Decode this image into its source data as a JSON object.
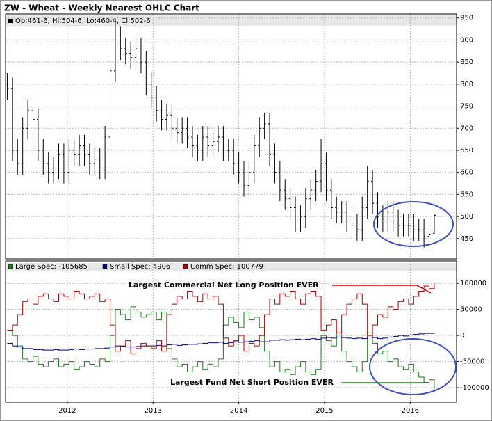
{
  "chart_data": [
    {
      "type": "ohlc",
      "title": "ZW - Wheat - Weekly Nearest OHLC Chart",
      "legend": "Op:461-6, Hi:504-6, Lo:460-4, Cl:502-6",
      "color": "#000000",
      "x": [
        2011.3,
        2011.36,
        2011.42,
        2011.48,
        2011.54,
        2011.6,
        2011.66,
        2011.72,
        2011.78,
        2011.84,
        2011.9,
        2011.96,
        2012.02,
        2012.08,
        2012.14,
        2012.2,
        2012.26,
        2012.32,
        2012.38,
        2012.44,
        2012.5,
        2012.56,
        2012.62,
        2012.68,
        2012.74,
        2012.8,
        2012.86,
        2012.92,
        2012.98,
        2013.04,
        2013.1,
        2013.16,
        2013.22,
        2013.28,
        2013.34,
        2013.4,
        2013.46,
        2013.52,
        2013.58,
        2013.64,
        2013.7,
        2013.76,
        2013.82,
        2013.88,
        2013.94,
        2014.0,
        2014.06,
        2014.12,
        2014.18,
        2014.24,
        2014.3,
        2014.36,
        2014.42,
        2014.48,
        2014.54,
        2014.6,
        2014.66,
        2014.72,
        2014.78,
        2014.84,
        2014.9,
        2014.96,
        2015.02,
        2015.08,
        2015.14,
        2015.2,
        2015.26,
        2015.32,
        2015.38,
        2015.44,
        2015.5,
        2015.56,
        2015.62,
        2015.68,
        2015.74,
        2015.8,
        2015.86,
        2015.92,
        2015.98,
        2016.04,
        2016.1,
        2016.16,
        2016.22,
        2016.28
      ],
      "open": [
        800,
        790,
        650,
        620,
        700,
        740,
        720,
        650,
        620,
        600,
        610,
        640,
        600,
        650,
        640,
        660,
        640,
        620,
        630,
        610,
        680,
        830,
        900,
        880,
        870,
        860,
        880,
        850,
        800,
        770,
        740,
        720,
        730,
        700,
        690,
        700,
        680,
        660,
        650,
        680,
        660,
        670,
        680,
        650,
        650,
        620,
        600,
        570,
        600,
        660,
        700,
        710,
        640,
        600,
        560,
        540,
        520,
        490,
        500,
        540,
        560,
        580,
        620,
        560,
        520,
        510,
        510,
        490,
        480,
        470,
        520,
        580,
        530,
        500,
        490,
        510,
        490,
        480,
        480,
        480,
        470,
        470,
        455,
        461.75
      ],
      "high": [
        825,
        815,
        675,
        725,
        765,
        765,
        745,
        675,
        645,
        635,
        665,
        665,
        675,
        675,
        685,
        685,
        665,
        655,
        655,
        705,
        855,
        945,
        930,
        905,
        895,
        905,
        905,
        875,
        825,
        795,
        765,
        755,
        755,
        725,
        725,
        725,
        705,
        685,
        705,
        705,
        695,
        705,
        705,
        675,
        675,
        645,
        625,
        625,
        685,
        725,
        735,
        735,
        665,
        625,
        585,
        565,
        545,
        525,
        565,
        585,
        605,
        675,
        645,
        585,
        545,
        535,
        535,
        515,
        505,
        545,
        615,
        605,
        555,
        525,
        535,
        535,
        515,
        505,
        505,
        505,
        495,
        495,
        485,
        504.75
      ],
      "low": [
        765,
        625,
        595,
        595,
        675,
        695,
        625,
        595,
        575,
        575,
        585,
        575,
        575,
        615,
        615,
        615,
        595,
        595,
        585,
        585,
        655,
        805,
        855,
        845,
        835,
        835,
        825,
        775,
        745,
        715,
        695,
        695,
        675,
        665,
        665,
        655,
        635,
        625,
        625,
        635,
        635,
        645,
        625,
        625,
        595,
        575,
        545,
        545,
        575,
        635,
        675,
        615,
        575,
        535,
        515,
        495,
        465,
        465,
        475,
        515,
        535,
        555,
        535,
        495,
        485,
        485,
        465,
        455,
        445,
        445,
        495,
        505,
        475,
        465,
        465,
        465,
        455,
        455,
        455,
        445,
        445,
        430,
        430,
        460.5
      ],
      "close": [
        790,
        650,
        620,
        700,
        740,
        720,
        650,
        620,
        600,
        610,
        640,
        600,
        650,
        640,
        660,
        640,
        620,
        630,
        610,
        680,
        830,
        900,
        880,
        870,
        860,
        880,
        850,
        800,
        770,
        740,
        720,
        730,
        700,
        690,
        700,
        680,
        660,
        650,
        680,
        660,
        670,
        680,
        650,
        650,
        620,
        600,
        570,
        600,
        660,
        700,
        710,
        640,
        600,
        560,
        540,
        520,
        490,
        500,
        540,
        560,
        580,
        620,
        560,
        520,
        510,
        510,
        490,
        480,
        470,
        520,
        580,
        530,
        500,
        490,
        510,
        490,
        480,
        480,
        480,
        470,
        470,
        455,
        460,
        502.75
      ],
      "xlim": [
        2011.28,
        2016.54
      ],
      "xticks": [
        2012,
        2013,
        2014,
        2015,
        2016
      ],
      "ylim": [
        404,
        959
      ],
      "yticks": [
        450,
        500,
        550,
        600,
        650,
        700,
        750,
        800,
        850,
        900,
        950
      ],
      "grid": true
    },
    {
      "type": "line",
      "x": [
        2011.3,
        2011.36,
        2011.42,
        2011.48,
        2011.54,
        2011.6,
        2011.66,
        2011.72,
        2011.78,
        2011.84,
        2011.9,
        2011.96,
        2012.02,
        2012.08,
        2012.14,
        2012.2,
        2012.26,
        2012.32,
        2012.38,
        2012.44,
        2012.5,
        2012.56,
        2012.62,
        2012.68,
        2012.74,
        2012.8,
        2012.86,
        2012.92,
        2012.98,
        2013.04,
        2013.1,
        2013.16,
        2013.22,
        2013.28,
        2013.34,
        2013.4,
        2013.46,
        2013.52,
        2013.58,
        2013.64,
        2013.7,
        2013.76,
        2013.82,
        2013.88,
        2013.94,
        2014.0,
        2014.06,
        2014.12,
        2014.18,
        2014.24,
        2014.3,
        2014.36,
        2014.42,
        2014.48,
        2014.54,
        2014.6,
        2014.66,
        2014.72,
        2014.78,
        2014.84,
        2014.9,
        2014.96,
        2015.02,
        2015.08,
        2015.14,
        2015.2,
        2015.26,
        2015.32,
        2015.38,
        2015.44,
        2015.5,
        2015.56,
        2015.62,
        2015.68,
        2015.74,
        2015.8,
        2015.86,
        2015.92,
        2015.98,
        2016.04,
        2016.1,
        2016.16,
        2016.22,
        2016.28
      ],
      "series": [
        {
          "name": "Large Spec: -105685",
          "color": "#1a7a1a",
          "values": [
            10000,
            0,
            -20000,
            -45000,
            -50000,
            -40000,
            -55000,
            -60000,
            -50000,
            -45000,
            -60000,
            -55000,
            -50000,
            -65000,
            -60000,
            -50000,
            -55000,
            -60000,
            -45000,
            -50000,
            0,
            50000,
            40000,
            30000,
            55000,
            45000,
            35000,
            40000,
            45000,
            30000,
            45000,
            -25000,
            -45000,
            -60000,
            -55000,
            -70000,
            -60000,
            -50000,
            -65000,
            -55000,
            -60000,
            -45000,
            20000,
            35000,
            25000,
            15000,
            45000,
            30000,
            35000,
            15000,
            -30000,
            -60000,
            -50000,
            -70000,
            -65000,
            -75000,
            -60000,
            -50000,
            -70000,
            -75000,
            -65000,
            0,
            -10000,
            -20000,
            5000,
            -30000,
            -50000,
            -60000,
            -70000,
            -50000,
            5000,
            -15000,
            -35000,
            -30000,
            -50000,
            -45000,
            -60000,
            -65000,
            -55000,
            -70000,
            -80000,
            -90000,
            -85000,
            -105685
          ]
        },
        {
          "name": "Small Spec: 4906",
          "color": "#000080",
          "values": [
            -15000,
            -20000,
            -22000,
            -25000,
            -25000,
            -27000,
            -27000,
            -28000,
            -28000,
            -27000,
            -28000,
            -28000,
            -27000,
            -26000,
            -27000,
            -26000,
            -26000,
            -25000,
            -25000,
            -24000,
            -22000,
            -20000,
            -21000,
            -22000,
            -22000,
            -21000,
            -20000,
            -20000,
            -20000,
            -19000,
            -20000,
            -18000,
            -17000,
            -19000,
            -18000,
            -17000,
            -17000,
            -16000,
            -15000,
            -14000,
            -14000,
            -13000,
            -15000,
            -14000,
            -12000,
            -13000,
            -12000,
            -11000,
            -10000,
            -12000,
            -12000,
            -9000,
            -9000,
            -8000,
            -9000,
            -8000,
            -7000,
            -8000,
            -7000,
            -6000,
            -7000,
            -5000,
            -4000,
            -5000,
            -3000,
            -4000,
            -5000,
            -6000,
            -5000,
            -6000,
            -3000,
            -4000,
            -6000,
            -5000,
            -3000,
            -2000,
            0,
            -1000,
            1000,
            2000,
            3000,
            4000,
            4000,
            4906
          ]
        },
        {
          "name": "Comm Spec: 100779",
          "color": "#b00000",
          "values": [
            10000,
            20000,
            40000,
            65000,
            70000,
            60000,
            75000,
            80000,
            70000,
            65000,
            80000,
            75000,
            70000,
            85000,
            80000,
            70000,
            75000,
            80000,
            65000,
            70000,
            20000,
            -30000,
            -20000,
            -10000,
            -35000,
            -25000,
            -15000,
            -20000,
            -25000,
            -10000,
            -30000,
            40000,
            60000,
            75000,
            70000,
            85000,
            75000,
            65000,
            80000,
            70000,
            75000,
            60000,
            -5000,
            -20000,
            -10000,
            0,
            -30000,
            -15000,
            -20000,
            0,
            40000,
            70000,
            60000,
            80000,
            75000,
            85000,
            70000,
            60000,
            80000,
            85000,
            75000,
            10000,
            20000,
            30000,
            5000,
            40000,
            60000,
            70000,
            80000,
            60000,
            0,
            20000,
            40000,
            35000,
            55000,
            50000,
            65000,
            70000,
            60000,
            75000,
            85000,
            95000,
            90000,
            100779
          ]
        }
      ],
      "xlim": [
        2011.28,
        2016.54
      ],
      "xticks": [
        2012,
        2013,
        2014,
        2015,
        2016
      ],
      "ylim": [
        -128000,
        143000
      ],
      "yticks": [
        100000,
        50000,
        0,
        -50000,
        -100000
      ],
      "grid": true,
      "annotations": [
        {
          "text": "Largest Commercial Net Long Position EVER",
          "color": "#e00000"
        },
        {
          "text": "Largest Fund Net Short Position EVER",
          "color": "#1a7a1a"
        }
      ]
    }
  ]
}
